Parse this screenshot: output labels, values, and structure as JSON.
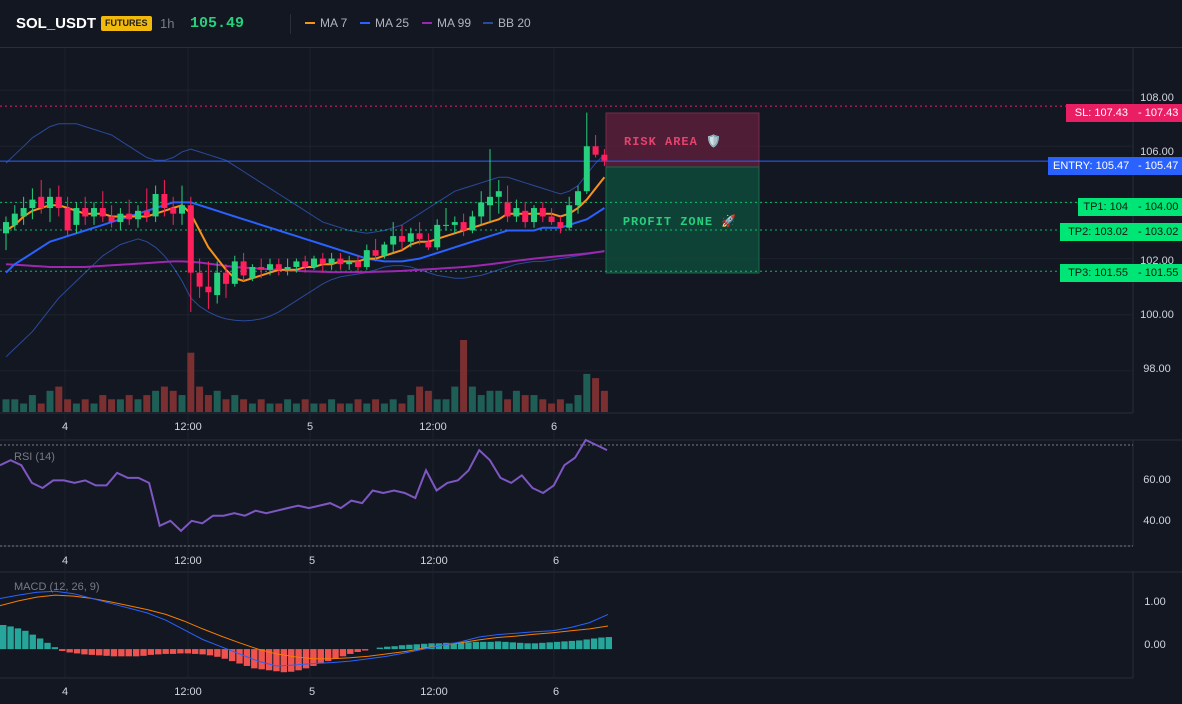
{
  "header": {
    "symbol": "SOL_USDT",
    "badge": "FUTURES",
    "timeframe": "1h",
    "last_price": "105.49",
    "legend": [
      {
        "label": "MA 7",
        "color": "#f7931a"
      },
      {
        "label": "MA 25",
        "color": "#2962ff"
      },
      {
        "label": "MA 99",
        "color": "#9c27b0"
      },
      {
        "label": "BB 20",
        "color": "#2a4a9a"
      }
    ]
  },
  "zones": {
    "risk_label": "RISK AREA 🛡️",
    "profit_label": "PROFIT ZONE 🚀"
  },
  "levels": {
    "sl": {
      "label": "SL: 107.43",
      "price": "107.43",
      "value": 107.43
    },
    "entry": {
      "label": "ENTRY: 105.47",
      "price": "105.47",
      "value": 105.47
    },
    "tp1": {
      "label": "TP1: 104",
      "price": "104.00",
      "value": 104.0
    },
    "tp2": {
      "label": "TP2: 103.02",
      "price": "103.02",
      "value": 103.02
    },
    "tp3": {
      "label": "TP3: 101.55",
      "price": "101.55",
      "value": 101.55
    }
  },
  "price_axis": [
    "108.00",
    "106.00",
    "102.00",
    "100.00",
    "98.00"
  ],
  "rsi": {
    "label": "RSI (14)",
    "axis": [
      "60.00",
      "40.00"
    ]
  },
  "macd": {
    "label": "MACD (12, 26, 9)",
    "axis": [
      "1.00",
      "0.00"
    ]
  },
  "time_axis": [
    "4",
    "12:00",
    "5",
    "12:00",
    "6"
  ],
  "colors": {
    "up": "#26a69a",
    "down": "#ef5350",
    "background": "#131722"
  },
  "chart_data": {
    "type": "candlestick",
    "price_ylim": [
      96.5,
      109.5
    ],
    "candles": [
      {
        "o": 102.9,
        "h": 103.5,
        "l": 102.3,
        "c": 103.3
      },
      {
        "o": 103.2,
        "h": 103.9,
        "l": 103.0,
        "c": 103.6
      },
      {
        "o": 103.5,
        "h": 104.2,
        "l": 103.2,
        "c": 103.8
      },
      {
        "o": 103.8,
        "h": 104.5,
        "l": 103.4,
        "c": 104.1
      },
      {
        "o": 104.2,
        "h": 104.8,
        "l": 103.6,
        "c": 103.8
      },
      {
        "o": 103.8,
        "h": 104.5,
        "l": 103.3,
        "c": 104.2
      },
      {
        "o": 104.2,
        "h": 104.6,
        "l": 103.5,
        "c": 103.8
      },
      {
        "o": 103.8,
        "h": 104.2,
        "l": 102.8,
        "c": 103.0
      },
      {
        "o": 103.2,
        "h": 104.0,
        "l": 102.9,
        "c": 103.8
      },
      {
        "o": 103.8,
        "h": 104.2,
        "l": 103.2,
        "c": 103.5
      },
      {
        "o": 103.5,
        "h": 104.0,
        "l": 103.2,
        "c": 103.8
      },
      {
        "o": 103.8,
        "h": 104.4,
        "l": 103.3,
        "c": 103.5
      },
      {
        "o": 103.5,
        "h": 103.9,
        "l": 103.1,
        "c": 103.3
      },
      {
        "o": 103.3,
        "h": 103.8,
        "l": 103.0,
        "c": 103.6
      },
      {
        "o": 103.6,
        "h": 104.1,
        "l": 103.2,
        "c": 103.4
      },
      {
        "o": 103.4,
        "h": 103.9,
        "l": 103.1,
        "c": 103.7
      },
      {
        "o": 103.7,
        "h": 104.5,
        "l": 103.3,
        "c": 103.5
      },
      {
        "o": 103.5,
        "h": 104.6,
        "l": 103.3,
        "c": 104.3
      },
      {
        "o": 104.3,
        "h": 104.8,
        "l": 103.5,
        "c": 103.8
      },
      {
        "o": 103.8,
        "h": 104.2,
        "l": 103.2,
        "c": 103.6
      },
      {
        "o": 103.6,
        "h": 104.6,
        "l": 103.2,
        "c": 103.9
      },
      {
        "o": 103.9,
        "h": 104.2,
        "l": 100.1,
        "c": 101.5
      },
      {
        "o": 101.5,
        "h": 102.0,
        "l": 100.6,
        "c": 101.0
      },
      {
        "o": 101.0,
        "h": 101.9,
        "l": 100.2,
        "c": 100.8
      },
      {
        "o": 100.7,
        "h": 101.9,
        "l": 100.4,
        "c": 101.5
      },
      {
        "o": 101.5,
        "h": 101.8,
        "l": 100.6,
        "c": 101.1
      },
      {
        "o": 101.1,
        "h": 102.1,
        "l": 101.0,
        "c": 101.9
      },
      {
        "o": 101.9,
        "h": 102.2,
        "l": 101.2,
        "c": 101.4
      },
      {
        "o": 101.3,
        "h": 101.8,
        "l": 101.2,
        "c": 101.7
      },
      {
        "o": 101.7,
        "h": 102.0,
        "l": 101.3,
        "c": 101.6
      },
      {
        "o": 101.6,
        "h": 102.0,
        "l": 101.4,
        "c": 101.8
      },
      {
        "o": 101.8,
        "h": 102.0,
        "l": 101.4,
        "c": 101.6
      },
      {
        "o": 101.6,
        "h": 102.0,
        "l": 101.4,
        "c": 101.7
      },
      {
        "o": 101.7,
        "h": 102.0,
        "l": 101.5,
        "c": 101.9
      },
      {
        "o": 101.9,
        "h": 102.1,
        "l": 101.5,
        "c": 101.7
      },
      {
        "o": 101.7,
        "h": 102.1,
        "l": 101.6,
        "c": 102.0
      },
      {
        "o": 102.0,
        "h": 102.2,
        "l": 101.5,
        "c": 101.8
      },
      {
        "o": 101.8,
        "h": 102.2,
        "l": 101.6,
        "c": 102.0
      },
      {
        "o": 102.0,
        "h": 102.2,
        "l": 101.6,
        "c": 101.8
      },
      {
        "o": 101.8,
        "h": 102.1,
        "l": 101.6,
        "c": 101.9
      },
      {
        "o": 101.9,
        "h": 102.1,
        "l": 101.5,
        "c": 101.7
      },
      {
        "o": 101.7,
        "h": 102.5,
        "l": 101.6,
        "c": 102.3
      },
      {
        "o": 102.3,
        "h": 102.7,
        "l": 101.9,
        "c": 102.1
      },
      {
        "o": 102.1,
        "h": 102.6,
        "l": 102.0,
        "c": 102.5
      },
      {
        "o": 102.5,
        "h": 103.3,
        "l": 102.2,
        "c": 102.8
      },
      {
        "o": 102.8,
        "h": 103.2,
        "l": 102.3,
        "c": 102.6
      },
      {
        "o": 102.6,
        "h": 103.1,
        "l": 102.4,
        "c": 102.9
      },
      {
        "o": 102.9,
        "h": 103.3,
        "l": 102.5,
        "c": 102.7
      },
      {
        "o": 102.6,
        "h": 102.9,
        "l": 102.3,
        "c": 102.4
      },
      {
        "o": 102.4,
        "h": 103.4,
        "l": 102.3,
        "c": 103.2
      },
      {
        "o": 103.2,
        "h": 103.8,
        "l": 103.0,
        "c": 103.2
      },
      {
        "o": 103.2,
        "h": 103.5,
        "l": 102.9,
        "c": 103.3
      },
      {
        "o": 103.3,
        "h": 103.6,
        "l": 102.8,
        "c": 103.0
      },
      {
        "o": 103.0,
        "h": 103.7,
        "l": 102.9,
        "c": 103.5
      },
      {
        "o": 103.5,
        "h": 104.4,
        "l": 103.2,
        "c": 104.0
      },
      {
        "o": 103.9,
        "h": 105.9,
        "l": 103.3,
        "c": 104.2
      },
      {
        "o": 104.2,
        "h": 104.8,
        "l": 103.6,
        "c": 104.4
      },
      {
        "o": 104.0,
        "h": 104.6,
        "l": 103.3,
        "c": 103.5
      },
      {
        "o": 103.5,
        "h": 104.1,
        "l": 103.3,
        "c": 103.8
      },
      {
        "o": 103.7,
        "h": 104.0,
        "l": 103.1,
        "c": 103.3
      },
      {
        "o": 103.3,
        "h": 103.9,
        "l": 103.1,
        "c": 103.8
      },
      {
        "o": 103.8,
        "h": 104.0,
        "l": 103.3,
        "c": 103.5
      },
      {
        "o": 103.5,
        "h": 103.8,
        "l": 103.2,
        "c": 103.3
      },
      {
        "o": 103.3,
        "h": 103.5,
        "l": 102.9,
        "c": 103.1
      },
      {
        "o": 103.1,
        "h": 104.2,
        "l": 103.0,
        "c": 103.9
      },
      {
        "o": 103.9,
        "h": 104.6,
        "l": 103.6,
        "c": 104.4
      },
      {
        "o": 104.4,
        "h": 107.2,
        "l": 104.3,
        "c": 106.0
      },
      {
        "o": 106.0,
        "h": 106.4,
        "l": 105.6,
        "c": 105.7
      },
      {
        "o": 105.7,
        "h": 105.9,
        "l": 105.3,
        "c": 105.49
      }
    ],
    "ma7": [
      103.0,
      103.2,
      103.5,
      103.7,
      103.8,
      103.9,
      103.9,
      103.8,
      103.7,
      103.6,
      103.6,
      103.6,
      103.5,
      103.5,
      103.5,
      103.5,
      103.5,
      103.6,
      103.7,
      103.8,
      103.9,
      103.6,
      103.0,
      102.4,
      102.0,
      101.6,
      101.3,
      101.2,
      101.3,
      101.4,
      101.5,
      101.6,
      101.6,
      101.6,
      101.7,
      101.7,
      101.8,
      101.8,
      101.9,
      101.9,
      101.9,
      102.0,
      102.0,
      102.1,
      102.2,
      102.3,
      102.5,
      102.6,
      102.6,
      102.7,
      102.8,
      102.9,
      103.0,
      103.1,
      103.2,
      103.3,
      103.4,
      103.6,
      103.6,
      103.6,
      103.6,
      103.6,
      103.6,
      103.5,
      103.6,
      103.8,
      104.1,
      104.5,
      104.9
    ],
    "ma25": [
      101.5,
      101.8,
      102.0,
      102.2,
      102.4,
      102.6,
      102.7,
      102.8,
      102.9,
      103.0,
      103.1,
      103.2,
      103.3,
      103.4,
      103.5,
      103.6,
      103.7,
      103.8,
      103.9,
      104.0,
      104.0,
      104.0,
      103.9,
      103.8,
      103.7,
      103.6,
      103.5,
      103.4,
      103.3,
      103.2,
      103.1,
      103.0,
      102.9,
      102.8,
      102.7,
      102.6,
      102.5,
      102.4,
      102.3,
      102.2,
      102.1,
      102.0,
      101.95,
      101.9,
      101.9,
      101.9,
      101.95,
      102.0,
      102.1,
      102.2,
      102.3,
      102.4,
      102.5,
      102.6,
      102.7,
      102.8,
      102.9,
      103.0,
      103.0,
      103.0,
      103.0,
      103.1,
      103.1,
      103.1,
      103.2,
      103.3,
      103.4,
      103.6,
      103.8
    ],
    "ma99": [
      101.8,
      101.78,
      101.76,
      101.74,
      101.72,
      101.7,
      101.7,
      101.7,
      101.7,
      101.7,
      101.72,
      101.74,
      101.76,
      101.78,
      101.8,
      101.82,
      101.84,
      101.86,
      101.88,
      101.9,
      101.9,
      101.88,
      101.86,
      101.82,
      101.78,
      101.74,
      101.7,
      101.68,
      101.66,
      101.64,
      101.62,
      101.6,
      101.58,
      101.56,
      101.55,
      101.54,
      101.53,
      101.52,
      101.52,
      101.52,
      101.52,
      101.52,
      101.53,
      101.54,
      101.55,
      101.56,
      101.58,
      101.6,
      101.62,
      101.64,
      101.66,
      101.68,
      101.7,
      101.73,
      101.76,
      101.8,
      101.84,
      101.88,
      101.92,
      101.96,
      102.0,
      102.03,
      102.06,
      102.09,
      102.12,
      102.15,
      102.18,
      102.22,
      102.26
    ],
    "bb_upper": [
      105.4,
      105.7,
      106.0,
      106.3,
      106.5,
      106.7,
      106.8,
      106.8,
      106.8,
      106.7,
      106.6,
      106.5,
      106.4,
      106.2,
      106.0,
      105.8,
      105.6,
      105.5,
      105.5,
      105.6,
      105.8,
      105.9,
      105.8,
      105.7,
      105.6,
      105.5,
      105.3,
      105.1,
      104.9,
      104.7,
      104.5,
      104.3,
      104.1,
      103.9,
      103.7,
      103.5,
      103.3,
      103.2,
      103.1,
      103.0,
      102.95,
      102.9,
      102.95,
      103.0,
      103.1,
      103.2,
      103.4,
      103.6,
      103.8,
      104.0,
      104.2,
      104.4,
      104.5,
      104.6,
      104.7,
      104.8,
      104.9,
      104.9,
      104.8,
      104.7,
      104.6,
      104.5,
      104.4,
      104.3,
      104.4,
      104.6,
      105.0,
      105.4,
      105.7
    ],
    "bb_lower": [
      98.5,
      98.8,
      99.1,
      99.4,
      99.8,
      100.2,
      100.6,
      100.9,
      101.2,
      101.5,
      101.8,
      102.1,
      102.3,
      102.5,
      102.6,
      102.7,
      102.6,
      102.4,
      102.1,
      101.7,
      101.2,
      100.6,
      100.3,
      100.1,
      99.95,
      99.85,
      99.8,
      99.78,
      99.8,
      99.85,
      99.95,
      100.1,
      100.3,
      100.5,
      100.7,
      100.9,
      101.1,
      101.25,
      101.35,
      101.4,
      101.45,
      101.5,
      101.6,
      101.7,
      101.75,
      101.75,
      101.7,
      101.6,
      101.5,
      101.4,
      101.35,
      101.3,
      101.3,
      101.35,
      101.4,
      101.5,
      101.6,
      101.7,
      101.8,
      101.85,
      101.9,
      101.9,
      101.95,
      102.0,
      102.05,
      102.1,
      102.15,
      102.2,
      102.3
    ],
    "volume": [
      3,
      3,
      2,
      4,
      2,
      5,
      6,
      3,
      2,
      3,
      2,
      4,
      3,
      3,
      4,
      3,
      4,
      5,
      6,
      5,
      4,
      14,
      6,
      4,
      5,
      3,
      4,
      3,
      2,
      3,
      2,
      2,
      3,
      2,
      3,
      2,
      2,
      3,
      2,
      2,
      3,
      2,
      3,
      2,
      3,
      2,
      4,
      6,
      5,
      3,
      3,
      6,
      17,
      6,
      4,
      5,
      5,
      3,
      5,
      4,
      4,
      3,
      2,
      3,
      2,
      4,
      9,
      8,
      5
    ],
    "rsi_ylim": [
      30,
      72
    ],
    "rsi_levels": [
      70,
      30
    ],
    "rsi": [
      62,
      64,
      62,
      55,
      53,
      56,
      56,
      55,
      56,
      54,
      54,
      59,
      57,
      57,
      55,
      38,
      40,
      36,
      40,
      39,
      42,
      42,
      43,
      42,
      44,
      43,
      44,
      45,
      46,
      45,
      46,
      47,
      45,
      48,
      47,
      52,
      51,
      52,
      51,
      49,
      60,
      52,
      55,
      56,
      60,
      68,
      64,
      57,
      55,
      58,
      53,
      51,
      54,
      62,
      65,
      72,
      70,
      68
    ],
    "macd_ylim": [
      -0.6,
      1.6
    ],
    "macd_line": [
      1.05,
      1.12,
      1.18,
      1.2,
      1.15,
      1.05,
      0.95,
      0.85,
      0.75,
      0.6,
      0.4,
      0.2,
      0.05,
      -0.1,
      -0.25,
      -0.35,
      -0.33,
      -0.3,
      -0.28,
      -0.25,
      -0.2,
      -0.15,
      -0.08,
      0.0,
      0.08,
      0.15,
      0.25,
      0.3,
      0.33,
      0.36,
      0.38,
      0.45,
      0.55,
      0.72
    ],
    "macd_signal": [
      0.9,
      1.0,
      1.08,
      1.12,
      1.1,
      1.05,
      0.98,
      0.9,
      0.82,
      0.72,
      0.58,
      0.42,
      0.27,
      0.13,
      0.0,
      -0.1,
      -0.16,
      -0.2,
      -0.2,
      -0.18,
      -0.15,
      -0.1,
      -0.05,
      0.02,
      0.08,
      0.13,
      0.19,
      0.24,
      0.27,
      0.31,
      0.34,
      0.38,
      0.42,
      0.48
    ],
    "macd_hist": [
      0.5,
      0.47,
      0.43,
      0.38,
      0.3,
      0.22,
      0.13,
      0.04,
      -0.04,
      -0.07,
      -0.09,
      -0.11,
      -0.12,
      -0.13,
      -0.14,
      -0.15,
      -0.15,
      -0.15,
      -0.15,
      -0.14,
      -0.12,
      -0.11,
      -0.1,
      -0.1,
      -0.09,
      -0.09,
      -0.1,
      -0.11,
      -0.13,
      -0.16,
      -0.2,
      -0.25,
      -0.3,
      -0.35,
      -0.4,
      -0.42,
      -0.44,
      -0.46,
      -0.48,
      -0.47,
      -0.44,
      -0.4,
      -0.35,
      -0.3,
      -0.25,
      -0.2,
      -0.15,
      -0.1,
      -0.06,
      -0.03,
      0.0,
      0.03,
      0.05,
      0.06,
      0.08,
      0.09,
      0.1,
      0.11,
      0.12,
      0.12,
      0.13,
      0.13,
      0.14,
      0.14,
      0.15,
      0.15,
      0.15,
      0.16,
      0.15,
      0.14,
      0.13,
      0.12,
      0.12,
      0.13,
      0.14,
      0.15,
      0.16,
      0.17,
      0.18,
      0.2,
      0.22,
      0.24,
      0.25
    ]
  }
}
